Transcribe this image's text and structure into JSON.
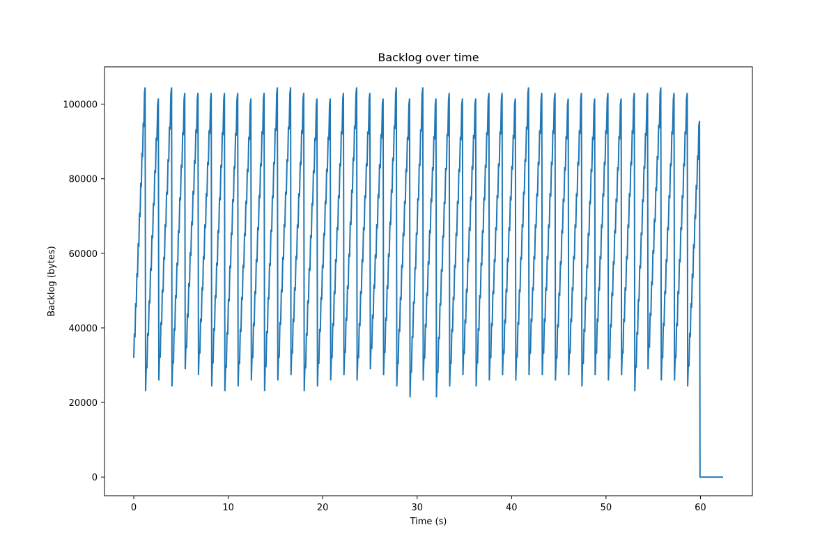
{
  "chart_data": {
    "type": "line",
    "title": "Backlog over time",
    "xlabel": "Time (s)",
    "ylabel": "Backlog (bytes)",
    "xlim": [
      -3.1,
      65.5
    ],
    "ylim": [
      -5000,
      110000
    ],
    "xticks": [
      0,
      10,
      20,
      30,
      40,
      50,
      60
    ],
    "yticks": [
      0,
      20000,
      40000,
      60000,
      80000,
      100000
    ],
    "x_tick_labels": [
      "0",
      "10",
      "20",
      "30",
      "40",
      "50",
      "60"
    ],
    "y_tick_labels": [
      "0",
      "20000",
      "40000",
      "60000",
      "80000",
      "100000"
    ],
    "grid": false,
    "color": "#1f77b4",
    "cycle_peaks": [
      [
        1.2,
        104500
      ],
      [
        2.6,
        101500
      ],
      [
        4.0,
        104500
      ],
      [
        5.4,
        103000
      ],
      [
        6.8,
        103000
      ],
      [
        8.2,
        103000
      ],
      [
        9.6,
        103000
      ],
      [
        11.0,
        103000
      ],
      [
        12.4,
        101500
      ],
      [
        13.8,
        103000
      ],
      [
        15.2,
        104500
      ],
      [
        16.6,
        104500
      ],
      [
        18.0,
        103000
      ],
      [
        19.4,
        101500
      ],
      [
        20.8,
        101500
      ],
      [
        22.2,
        103000
      ],
      [
        23.6,
        104500
      ],
      [
        25.0,
        103000
      ],
      [
        26.4,
        101500
      ],
      [
        27.8,
        104500
      ],
      [
        29.2,
        101500
      ],
      [
        30.6,
        104500
      ],
      [
        32.0,
        101500
      ],
      [
        33.4,
        103000
      ],
      [
        34.8,
        101500
      ],
      [
        36.2,
        101500
      ],
      [
        37.6,
        103000
      ],
      [
        39.0,
        103000
      ],
      [
        40.4,
        101500
      ],
      [
        41.8,
        104500
      ],
      [
        43.2,
        103000
      ],
      [
        44.6,
        103000
      ],
      [
        46.0,
        101500
      ],
      [
        47.4,
        103000
      ],
      [
        48.8,
        101500
      ],
      [
        50.2,
        103000
      ],
      [
        51.6,
        101500
      ],
      [
        53.0,
        103000
      ],
      [
        54.4,
        103000
      ],
      [
        55.8,
        104500
      ],
      [
        57.2,
        103000
      ],
      [
        58.6,
        103000
      ],
      [
        59.9,
        95500
      ]
    ],
    "cycle_troughs": [
      [
        1.25,
        23000
      ],
      [
        2.65,
        25900
      ],
      [
        4.05,
        24300
      ],
      [
        5.45,
        28900
      ],
      [
        6.85,
        27300
      ],
      [
        8.25,
        24300
      ],
      [
        9.65,
        23000
      ],
      [
        11.05,
        24300
      ],
      [
        12.45,
        25900
      ],
      [
        13.85,
        23000
      ],
      [
        15.25,
        25900
      ],
      [
        16.65,
        27300
      ],
      [
        18.05,
        23000
      ],
      [
        19.45,
        24300
      ],
      [
        20.85,
        25900
      ],
      [
        22.25,
        27300
      ],
      [
        23.65,
        25900
      ],
      [
        25.05,
        28900
      ],
      [
        26.45,
        27300
      ],
      [
        27.85,
        24300
      ],
      [
        29.25,
        21400
      ],
      [
        30.65,
        25900
      ],
      [
        32.05,
        21400
      ],
      [
        33.45,
        24300
      ],
      [
        34.85,
        27300
      ],
      [
        36.25,
        24300
      ],
      [
        37.65,
        25900
      ],
      [
        39.05,
        27300
      ],
      [
        40.45,
        25900
      ],
      [
        41.85,
        27300
      ],
      [
        43.25,
        27300
      ],
      [
        44.65,
        25900
      ],
      [
        46.05,
        27300
      ],
      [
        47.45,
        24300
      ],
      [
        48.85,
        27300
      ],
      [
        50.25,
        25900
      ],
      [
        51.65,
        27300
      ],
      [
        53.05,
        23000
      ],
      [
        54.45,
        28900
      ],
      [
        55.85,
        25900
      ],
      [
        57.25,
        25900
      ],
      [
        58.65,
        24300
      ]
    ],
    "start": [
      0,
      32000
    ],
    "end_drop": [
      [
        59.95,
        0
      ],
      [
        62.4,
        0
      ]
    ]
  }
}
